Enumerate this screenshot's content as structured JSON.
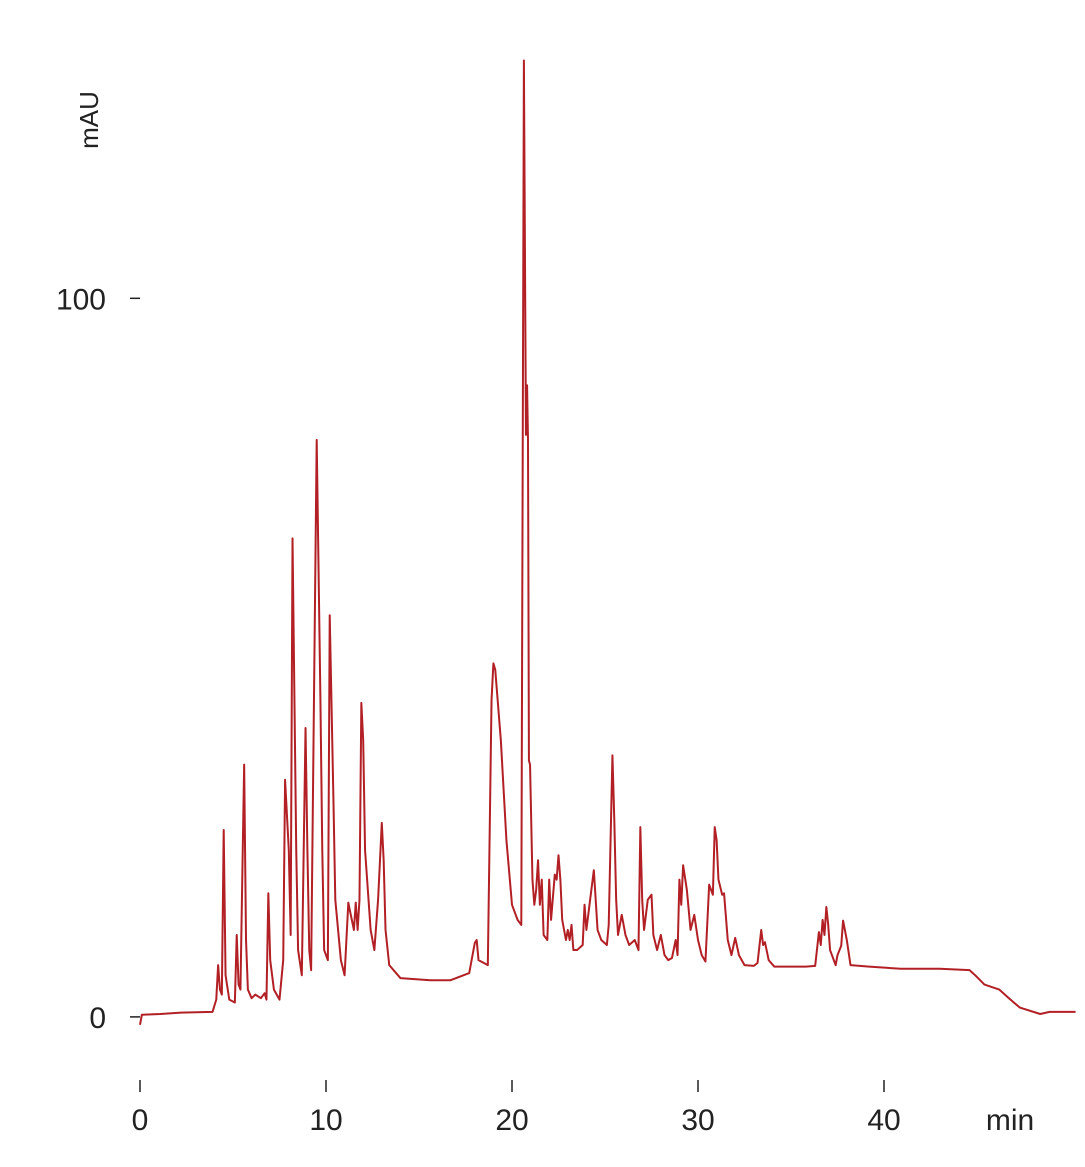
{
  "chart_data": {
    "type": "line",
    "y_label": "mAU",
    "x_label": "min",
    "color": "#b22025",
    "xlim": [
      0,
      50.5
    ],
    "ylim": [
      -6,
      134
    ],
    "xticks": [
      0,
      10,
      20,
      30,
      40
    ],
    "yticks": [
      0,
      100
    ],
    "x": [
      0,
      0.1,
      1.1,
      2.2,
      3.9,
      4.1,
      4.2,
      4.3,
      4.4,
      4.5,
      4.6,
      4.8,
      5.1,
      5.2,
      5.3,
      5.4,
      5.6,
      5.7,
      5.8,
      6.0,
      6.2,
      6.5,
      6.7,
      6.8,
      6.9,
      7.0,
      7.2,
      7.5,
      7.7,
      7.8,
      8.0,
      8.1,
      8.2,
      8.4,
      8.5,
      8.7,
      8.9,
      9.0,
      9.1,
      9.2,
      9.5,
      9.7,
      9.8,
      9.9,
      10.1,
      10.2,
      10.4,
      10.5,
      10.8,
      11.0,
      11.2,
      11.3,
      11.5,
      11.6,
      11.7,
      11.8,
      11.9,
      12.0,
      12.1,
      12.4,
      12.6,
      12.8,
      13.0,
      13.1,
      13.2,
      13.4,
      14.0,
      15.6,
      16.7,
      17.7,
      18.0,
      18.1,
      18.2,
      18.7,
      18.9,
      19.0,
      19.1,
      19.4,
      19.7,
      20.0,
      20.3,
      20.5,
      20.64,
      20.75,
      20.81,
      20.86,
      20.91,
      20.97,
      21.1,
      21.2,
      21.3,
      21.4,
      21.5,
      21.6,
      21.7,
      21.9,
      22.0,
      22.1,
      22.3,
      22.4,
      22.5,
      22.6,
      22.7,
      22.9,
      23.0,
      23.1,
      23.2,
      23.3,
      23.5,
      23.8,
      23.9,
      24.0,
      24.2,
      24.4,
      24.5,
      24.6,
      24.8,
      25.1,
      25.2,
      25.4,
      25.5,
      25.6,
      25.7,
      25.9,
      26.1,
      26.3,
      26.6,
      26.8,
      26.9,
      27.0,
      27.1,
      27.3,
      27.5,
      27.6,
      27.8,
      28.0,
      28.2,
      28.4,
      28.6,
      28.8,
      28.9,
      29.0,
      29.1,
      29.2,
      29.4,
      29.6,
      29.8,
      30.0,
      30.2,
      30.4,
      30.6,
      30.8,
      30.9,
      31.0,
      31.1,
      31.3,
      31.4,
      31.6,
      31.8,
      32.0,
      32.2,
      32.5,
      33.0,
      33.2,
      33.4,
      33.5,
      33.6,
      33.8,
      34.1,
      35.8,
      36.3,
      36.5,
      36.6,
      36.7,
      36.8,
      36.9,
      37.0,
      37.1,
      37.4,
      37.5,
      37.7,
      37.8,
      38.0,
      38.2,
      39.2,
      40.9,
      43.0,
      44.6,
      44.9,
      45.4,
      46.2,
      46.8,
      47.3,
      48.4,
      48.9,
      50.3
    ],
    "values": [
      -1.1,
      0.3,
      0.4,
      0.6,
      0.7,
      2.4,
      7.2,
      3.8,
      3.1,
      26.0,
      5.8,
      2.4,
      2.0,
      11.4,
      4.5,
      3.8,
      35.1,
      10.7,
      3.8,
      2.6,
      3.1,
      2.6,
      3.3,
      2.4,
      17.2,
      7.9,
      3.8,
      2.4,
      7.9,
      33.0,
      23.2,
      11.4,
      66.6,
      23.2,
      9.3,
      5.8,
      40.2,
      23.2,
      9.3,
      6.5,
      80.3,
      44.1,
      23.2,
      9.3,
      7.9,
      55.9,
      30.2,
      16.3,
      7.9,
      5.8,
      15.9,
      14.6,
      12.1,
      15.9,
      12.1,
      16.3,
      43.7,
      38.5,
      23.2,
      12.1,
      9.3,
      16.3,
      27.0,
      21.8,
      12.1,
      7.2,
      5.4,
      5.1,
      5.1,
      6.1,
      10.3,
      10.7,
      7.9,
      7.2,
      44.1,
      49.2,
      48.3,
      38.5,
      24.6,
      15.6,
      13.5,
      12.8,
      133.1,
      81.0,
      87.9,
      80.3,
      35.7,
      35.1,
      19.1,
      15.6,
      17.7,
      21.8,
      15.6,
      19.1,
      11.4,
      10.7,
      19.1,
      13.5,
      19.8,
      19.1,
      22.5,
      19.1,
      13.5,
      10.7,
      12.1,
      10.7,
      12.8,
      9.3,
      9.3,
      10.0,
      15.6,
      12.1,
      16.3,
      20.4,
      16.3,
      12.1,
      10.7,
      10.0,
      12.8,
      36.4,
      27.4,
      16.3,
      11.4,
      14.2,
      11.4,
      10.0,
      10.7,
      9.3,
      26.4,
      16.3,
      12.1,
      16.3,
      17.0,
      11.4,
      9.3,
      11.4,
      8.6,
      7.9,
      8.2,
      10.7,
      8.6,
      19.1,
      15.6,
      21.1,
      17.7,
      12.1,
      14.2,
      10.7,
      8.6,
      7.7,
      18.4,
      17.0,
      26.4,
      24.6,
      19.1,
      17.0,
      17.2,
      10.7,
      8.6,
      11.0,
      8.6,
      7.2,
      7.1,
      7.5,
      12.1,
      10.0,
      10.4,
      7.9,
      7.0,
      7.0,
      7.1,
      11.8,
      10.0,
      13.5,
      11.4,
      15.3,
      12.8,
      9.3,
      7.2,
      8.6,
      9.9,
      13.4,
      10.7,
      7.2,
      7.0,
      6.7,
      6.7,
      6.5,
      5.8,
      4.5,
      3.8,
      2.4,
      1.3,
      0.4,
      0.7,
      0.7
    ]
  }
}
